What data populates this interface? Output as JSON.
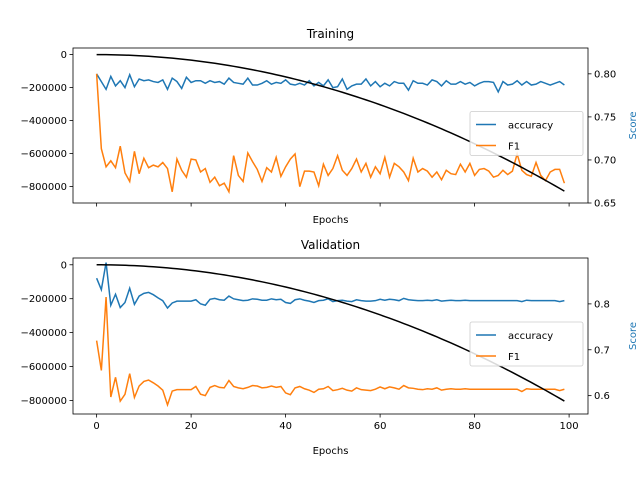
{
  "chart_data": [
    {
      "type": "line",
      "title": "Training",
      "xlabel": "Epochs",
      "ylabel": "",
      "y2label": "Score",
      "xlim": [
        -5,
        104
      ],
      "ylim": [
        -900000,
        40000
      ],
      "y2lim": [
        0.65,
        0.83
      ],
      "xticks": [],
      "yticks": [
        0,
        -200000,
        -400000,
        -600000,
        -800000
      ],
      "yticklabels": [
        "0",
        "−200000",
        "−400000",
        "−600000",
        "−800000"
      ],
      "y2ticks": [
        0.65,
        0.7,
        0.75,
        0.8
      ],
      "y2ticklabels": [
        "0.65",
        "0.70",
        "0.75",
        "0.80"
      ],
      "legend": "center-right",
      "loss": {
        "name": "",
        "color": "#000000",
        "function": "y = -84.5 * x^2",
        "x_range": [
          0,
          99
        ]
      },
      "series": [
        {
          "name": "accuracy",
          "color": "#1f77b4",
          "values": [
            0.8,
            0.791,
            0.782,
            0.797,
            0.786,
            0.792,
            0.784,
            0.799,
            0.785,
            0.794,
            0.792,
            0.793,
            0.791,
            0.79,
            0.793,
            0.782,
            0.795,
            0.791,
            0.783,
            0.796,
            0.79,
            0.792,
            0.792,
            0.789,
            0.792,
            0.79,
            0.791,
            0.788,
            0.795,
            0.79,
            0.789,
            0.788,
            0.795,
            0.787,
            0.787,
            0.789,
            0.792,
            0.788,
            0.79,
            0.789,
            0.793,
            0.788,
            0.787,
            0.789,
            0.787,
            0.792,
            0.786,
            0.79,
            0.786,
            0.793,
            0.784,
            0.785,
            0.794,
            0.782,
            0.786,
            0.788,
            0.788,
            0.794,
            0.786,
            0.791,
            0.785,
            0.789,
            0.786,
            0.791,
            0.789,
            0.789,
            0.781,
            0.792,
            0.789,
            0.789,
            0.787,
            0.793,
            0.791,
            0.786,
            0.792,
            0.788,
            0.788,
            0.791,
            0.788,
            0.79,
            0.786,
            0.789,
            0.791,
            0.791,
            0.79,
            0.779,
            0.791,
            0.787,
            0.788,
            0.792,
            0.787,
            0.791,
            0.787,
            0.788,
            0.791,
            0.789,
            0.787,
            0.789,
            0.791,
            0.787
          ]
        },
        {
          "name": "F1",
          "color": "#ff7f0e",
          "values": [
            0.8,
            0.713,
            0.692,
            0.699,
            0.691,
            0.716,
            0.685,
            0.675,
            0.71,
            0.684,
            0.702,
            0.691,
            0.694,
            0.692,
            0.697,
            0.69,
            0.663,
            0.701,
            0.688,
            0.68,
            0.701,
            0.7,
            0.686,
            0.69,
            0.674,
            0.68,
            0.67,
            0.673,
            0.663,
            0.705,
            0.682,
            0.675,
            0.708,
            0.698,
            0.689,
            0.675,
            0.691,
            0.686,
            0.703,
            0.681,
            0.692,
            0.701,
            0.707,
            0.669,
            0.687,
            0.687,
            0.686,
            0.67,
            0.695,
            0.682,
            0.69,
            0.705,
            0.688,
            0.682,
            0.69,
            0.701,
            0.686,
            0.696,
            0.68,
            0.692,
            0.684,
            0.703,
            0.68,
            0.696,
            0.692,
            0.686,
            0.676,
            0.702,
            0.686,
            0.69,
            0.687,
            0.68,
            0.686,
            0.677,
            0.688,
            0.684,
            0.683,
            0.695,
            0.686,
            0.696,
            0.682,
            0.689,
            0.69,
            0.687,
            0.68,
            0.682,
            0.688,
            0.683,
            0.687,
            0.707,
            0.688,
            0.683,
            0.681,
            0.697,
            0.682,
            0.676,
            0.686,
            0.689,
            0.689,
            0.673
          ]
        }
      ]
    },
    {
      "type": "line",
      "title": "Validation",
      "xlabel": "Epochs",
      "ylabel": "",
      "y2label": "Score",
      "xlim": [
        -5,
        104
      ],
      "ylim": [
        -880000,
        40000
      ],
      "y2lim": [
        0.56,
        0.9
      ],
      "xticks": [
        0,
        20,
        40,
        60,
        80,
        100
      ],
      "xticklabels": [
        "0",
        "20",
        "40",
        "60",
        "80",
        "100"
      ],
      "yticks": [
        0,
        -200000,
        -400000,
        -600000,
        -800000
      ],
      "yticklabels": [
        "0",
        "−200000",
        "−400000",
        "−600000",
        "−800000"
      ],
      "y2ticks": [
        0.6,
        0.7,
        0.8
      ],
      "y2ticklabels": [
        "0.6",
        "0.7",
        "0.8"
      ],
      "legend": "center-right",
      "loss": {
        "name": "",
        "color": "#000000",
        "function": "y = -82.0 * x^2",
        "x_range": [
          0,
          99
        ]
      },
      "series": [
        {
          "name": "accuracy",
          "color": "#1f77b4",
          "values": [
            0.856,
            0.831,
            0.89,
            0.797,
            0.821,
            0.792,
            0.803,
            0.834,
            0.799,
            0.817,
            0.823,
            0.825,
            0.82,
            0.813,
            0.807,
            0.791,
            0.802,
            0.806,
            0.806,
            0.806,
            0.806,
            0.809,
            0.8,
            0.797,
            0.81,
            0.812,
            0.809,
            0.808,
            0.817,
            0.811,
            0.809,
            0.807,
            0.808,
            0.811,
            0.81,
            0.808,
            0.808,
            0.811,
            0.809,
            0.81,
            0.803,
            0.801,
            0.809,
            0.811,
            0.808,
            0.806,
            0.803,
            0.807,
            0.808,
            0.811,
            0.805,
            0.807,
            0.808,
            0.806,
            0.805,
            0.809,
            0.807,
            0.806,
            0.806,
            0.807,
            0.81,
            0.808,
            0.81,
            0.809,
            0.807,
            0.812,
            0.809,
            0.808,
            0.807,
            0.807,
            0.808,
            0.807,
            0.809,
            0.806,
            0.807,
            0.808,
            0.807,
            0.807,
            0.808,
            0.807,
            0.807,
            0.807,
            0.807,
            0.807,
            0.807,
            0.807,
            0.807,
            0.807,
            0.807,
            0.807,
            0.805,
            0.808,
            0.807,
            0.807,
            0.807,
            0.807,
            0.807,
            0.807,
            0.805,
            0.807
          ]
        },
        {
          "name": "F1",
          "color": "#ff7f0e",
          "values": [
            0.72,
            0.655,
            0.815,
            0.597,
            0.64,
            0.588,
            0.603,
            0.648,
            0.596,
            0.621,
            0.631,
            0.634,
            0.628,
            0.621,
            0.612,
            0.58,
            0.61,
            0.613,
            0.613,
            0.613,
            0.613,
            0.62,
            0.603,
            0.6,
            0.618,
            0.622,
            0.618,
            0.617,
            0.633,
            0.62,
            0.617,
            0.615,
            0.618,
            0.622,
            0.621,
            0.617,
            0.618,
            0.621,
            0.618,
            0.62,
            0.606,
            0.602,
            0.617,
            0.62,
            0.615,
            0.612,
            0.607,
            0.614,
            0.615,
            0.62,
            0.611,
            0.613,
            0.616,
            0.612,
            0.61,
            0.617,
            0.613,
            0.612,
            0.611,
            0.614,
            0.619,
            0.615,
            0.619,
            0.617,
            0.614,
            0.622,
            0.617,
            0.616,
            0.614,
            0.613,
            0.615,
            0.614,
            0.617,
            0.612,
            0.614,
            0.615,
            0.614,
            0.614,
            0.615,
            0.614,
            0.614,
            0.614,
            0.614,
            0.614,
            0.614,
            0.614,
            0.614,
            0.614,
            0.614,
            0.614,
            0.609,
            0.615,
            0.614,
            0.614,
            0.614,
            0.614,
            0.614,
            0.614,
            0.611,
            0.614
          ]
        }
      ]
    }
  ]
}
